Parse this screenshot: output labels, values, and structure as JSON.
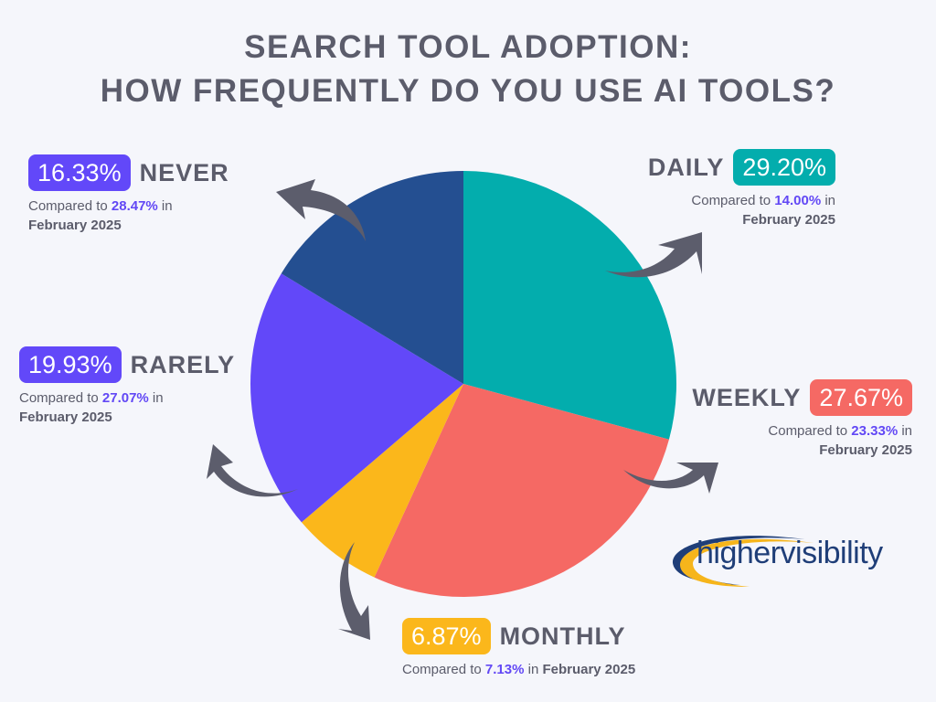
{
  "title": {
    "line1": "SEARCH TOOL ADOPTION:",
    "line2": "HOW FREQUENTLY DO YOU USE AI TOOLS?"
  },
  "labels": {
    "daily": {
      "category": "DAILY",
      "percent": "29.20%",
      "compare_prefix": "Compared to ",
      "compare_value": "14.00%",
      "compare_suffix": " in",
      "period": "February 2025"
    },
    "weekly": {
      "category": "WEEKLY",
      "percent": "27.67%",
      "compare_prefix": "Compared to ",
      "compare_value": "23.33%",
      "compare_suffix": " in",
      "period": "February 2025"
    },
    "monthly": {
      "category": "MONTHLY",
      "percent": "6.87%",
      "compare_prefix": "Compared to ",
      "compare_value": "7.13%",
      "compare_suffix": " in ",
      "period": "February 2025"
    },
    "rarely": {
      "category": "RARELY",
      "percent": "19.93%",
      "compare_prefix": "Compared to ",
      "compare_value": "27.07%",
      "compare_suffix": " in",
      "period": "February 2025"
    },
    "never": {
      "category": "NEVER",
      "percent": "16.33%",
      "compare_prefix": "Compared to ",
      "compare_value": "28.47%",
      "compare_suffix": " in",
      "period": "February 2025"
    }
  },
  "logo": {
    "text": "highervisibility"
  },
  "colors": {
    "daily": "#03adad",
    "weekly": "#f56964",
    "monthly": "#fbb71b",
    "rarely": "#6248f9",
    "never": "#244f91",
    "arrow": "#5c5d6c",
    "compare_accent": "#6248f5"
  },
  "chart_data": {
    "type": "pie",
    "title": "Search Tool Adoption: How Frequently Do You Use AI Tools?",
    "categories": [
      "Daily",
      "Weekly",
      "Monthly",
      "Rarely",
      "Never"
    ],
    "values": [
      29.2,
      27.67,
      6.87,
      19.93,
      16.33
    ],
    "colors": [
      "#03adad",
      "#f56964",
      "#fbb71b",
      "#6248f9",
      "#244f91"
    ],
    "comparison": {
      "label": "February 2025",
      "values": [
        14.0,
        23.33,
        7.13,
        27.07,
        28.47
      ]
    },
    "start_angle": "12 o'clock",
    "direction": "clockwise",
    "legend": "none (callout labels around pie)"
  }
}
